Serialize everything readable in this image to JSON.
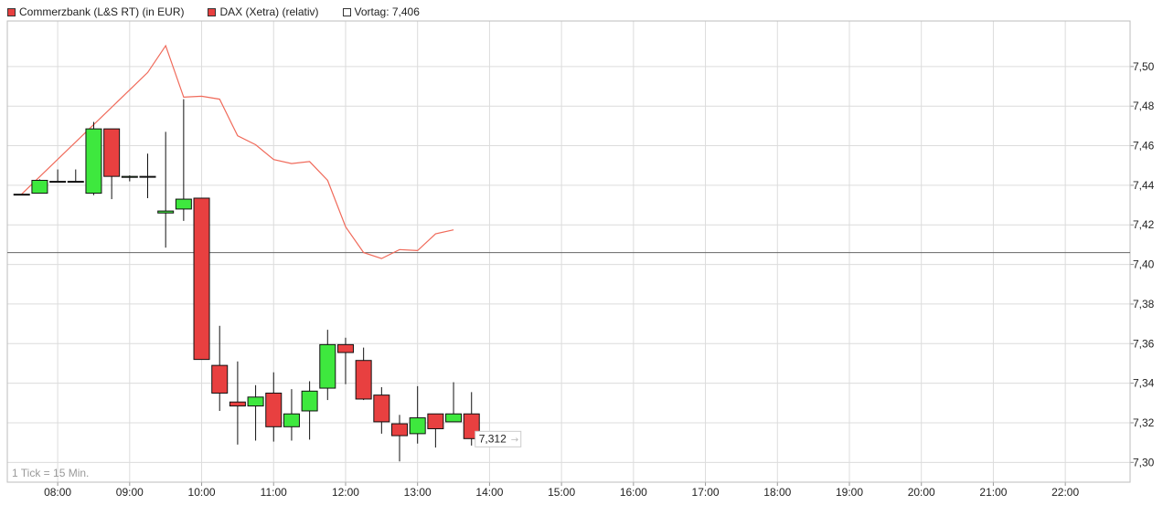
{
  "legend": [
    {
      "label": "Commerzbank (L&S RT) (in EUR)",
      "color": "#e84040"
    },
    {
      "label": "DAX (Xetra) (relativ)",
      "color": "#e84040"
    },
    {
      "label": "Vortag: 7,406",
      "color": "#ffffff"
    }
  ],
  "colors": {
    "up": "#3ee83e",
    "down": "#e84040",
    "dax_line": "#f06a5a",
    "grid": "#dcdcdc",
    "reference": "#666666"
  },
  "chart_data": {
    "type": "candlestick",
    "footnote": "1 Tick = 15 Min.",
    "x_ticks": [
      "08:00",
      "09:00",
      "10:00",
      "11:00",
      "12:00",
      "13:00",
      "14:00",
      "15:00",
      "16:00",
      "17:00",
      "18:00",
      "19:00",
      "20:00",
      "21:00",
      "22:00"
    ],
    "y_ticks": [
      "7,30",
      "7,32",
      "7,34",
      "7,36",
      "7,38",
      "7,40",
      "7,42",
      "7,44",
      "7,46",
      "7,48",
      "7,50"
    ],
    "ylim": [
      7.29,
      7.523
    ],
    "reference_value": 7.406,
    "last_value_label": "7,312",
    "candles": [
      {
        "time": "07:30",
        "open": 7.4355,
        "high": 7.4355,
        "low": 7.4355,
        "close": 7.4355
      },
      {
        "time": "07:45",
        "open": 7.436,
        "high": 7.443,
        "low": 7.436,
        "close": 7.4425
      },
      {
        "time": "08:00",
        "open": 7.442,
        "high": 7.448,
        "low": 7.442,
        "close": 7.442
      },
      {
        "time": "08:15",
        "open": 7.442,
        "high": 7.448,
        "low": 7.442,
        "close": 7.442
      },
      {
        "time": "08:30",
        "open": 7.436,
        "high": 7.472,
        "low": 7.435,
        "close": 7.4685
      },
      {
        "time": "08:45",
        "open": 7.4685,
        "high": 7.4685,
        "low": 7.433,
        "close": 7.4445
      },
      {
        "time": "09:00",
        "open": 7.444,
        "high": 7.445,
        "low": 7.442,
        "close": 7.4445
      },
      {
        "time": "09:15",
        "open": 7.4445,
        "high": 7.456,
        "low": 7.4335,
        "close": 7.4445
      },
      {
        "time": "09:30",
        "open": 7.426,
        "high": 7.467,
        "low": 7.4085,
        "close": 7.427
      },
      {
        "time": "09:45",
        "open": 7.428,
        "high": 7.4835,
        "low": 7.422,
        "close": 7.433
      },
      {
        "time": "10:00",
        "open": 7.4335,
        "high": 7.4335,
        "low": 7.352,
        "close": 7.352
      },
      {
        "time": "10:15",
        "open": 7.349,
        "high": 7.369,
        "low": 7.326,
        "close": 7.335
      },
      {
        "time": "10:30",
        "open": 7.3305,
        "high": 7.351,
        "low": 7.309,
        "close": 7.3285
      },
      {
        "time": "10:45",
        "open": 7.3285,
        "high": 7.339,
        "low": 7.311,
        "close": 7.333
      },
      {
        "time": "11:00",
        "open": 7.335,
        "high": 7.3455,
        "low": 7.3105,
        "close": 7.318
      },
      {
        "time": "11:15",
        "open": 7.318,
        "high": 7.337,
        "low": 7.311,
        "close": 7.3245
      },
      {
        "time": "11:30",
        "open": 7.326,
        "high": 7.341,
        "low": 7.3115,
        "close": 7.336
      },
      {
        "time": "11:45",
        "open": 7.3375,
        "high": 7.367,
        "low": 7.3315,
        "close": 7.3595
      },
      {
        "time": "12:00",
        "open": 7.3595,
        "high": 7.363,
        "low": 7.3395,
        "close": 7.3555
      },
      {
        "time": "12:15",
        "open": 7.3515,
        "high": 7.358,
        "low": 7.3315,
        "close": 7.332
      },
      {
        "time": "12:30",
        "open": 7.334,
        "high": 7.338,
        "low": 7.3145,
        "close": 7.3205
      },
      {
        "time": "12:45",
        "open": 7.3195,
        "high": 7.324,
        "low": 7.3005,
        "close": 7.3135
      },
      {
        "time": "13:00",
        "open": 7.3145,
        "high": 7.3385,
        "low": 7.3095,
        "close": 7.3225
      },
      {
        "time": "13:15",
        "open": 7.3245,
        "high": 7.324,
        "low": 7.3075,
        "close": 7.317
      },
      {
        "time": "13:30",
        "open": 7.3205,
        "high": 7.3405,
        "low": 7.3205,
        "close": 7.3245
      },
      {
        "time": "13:45",
        "open": 7.3245,
        "high": 7.3355,
        "low": 7.3085,
        "close": 7.312
      }
    ],
    "dax_line": {
      "name": "DAX (Xetra) (relativ)",
      "points": [
        {
          "time": "07:30",
          "value": 7.4355
        },
        {
          "time": "09:15",
          "value": 7.497
        },
        {
          "time": "09:30",
          "value": 7.5105
        },
        {
          "time": "09:45",
          "value": 7.4845
        },
        {
          "time": "10:00",
          "value": 7.485
        },
        {
          "time": "10:15",
          "value": 7.4835
        },
        {
          "time": "10:30",
          "value": 7.465
        },
        {
          "time": "10:45",
          "value": 7.4605
        },
        {
          "time": "11:00",
          "value": 7.453
        },
        {
          "time": "11:15",
          "value": 7.451
        },
        {
          "time": "11:30",
          "value": 7.452
        },
        {
          "time": "11:45",
          "value": 7.4425
        },
        {
          "time": "12:00",
          "value": 7.419
        },
        {
          "time": "12:15",
          "value": 7.406
        },
        {
          "time": "12:30",
          "value": 7.403
        },
        {
          "time": "12:45",
          "value": 7.4075
        },
        {
          "time": "13:00",
          "value": 7.407
        },
        {
          "time": "13:15",
          "value": 7.4155
        },
        {
          "time": "13:30",
          "value": 7.4175
        }
      ]
    }
  }
}
